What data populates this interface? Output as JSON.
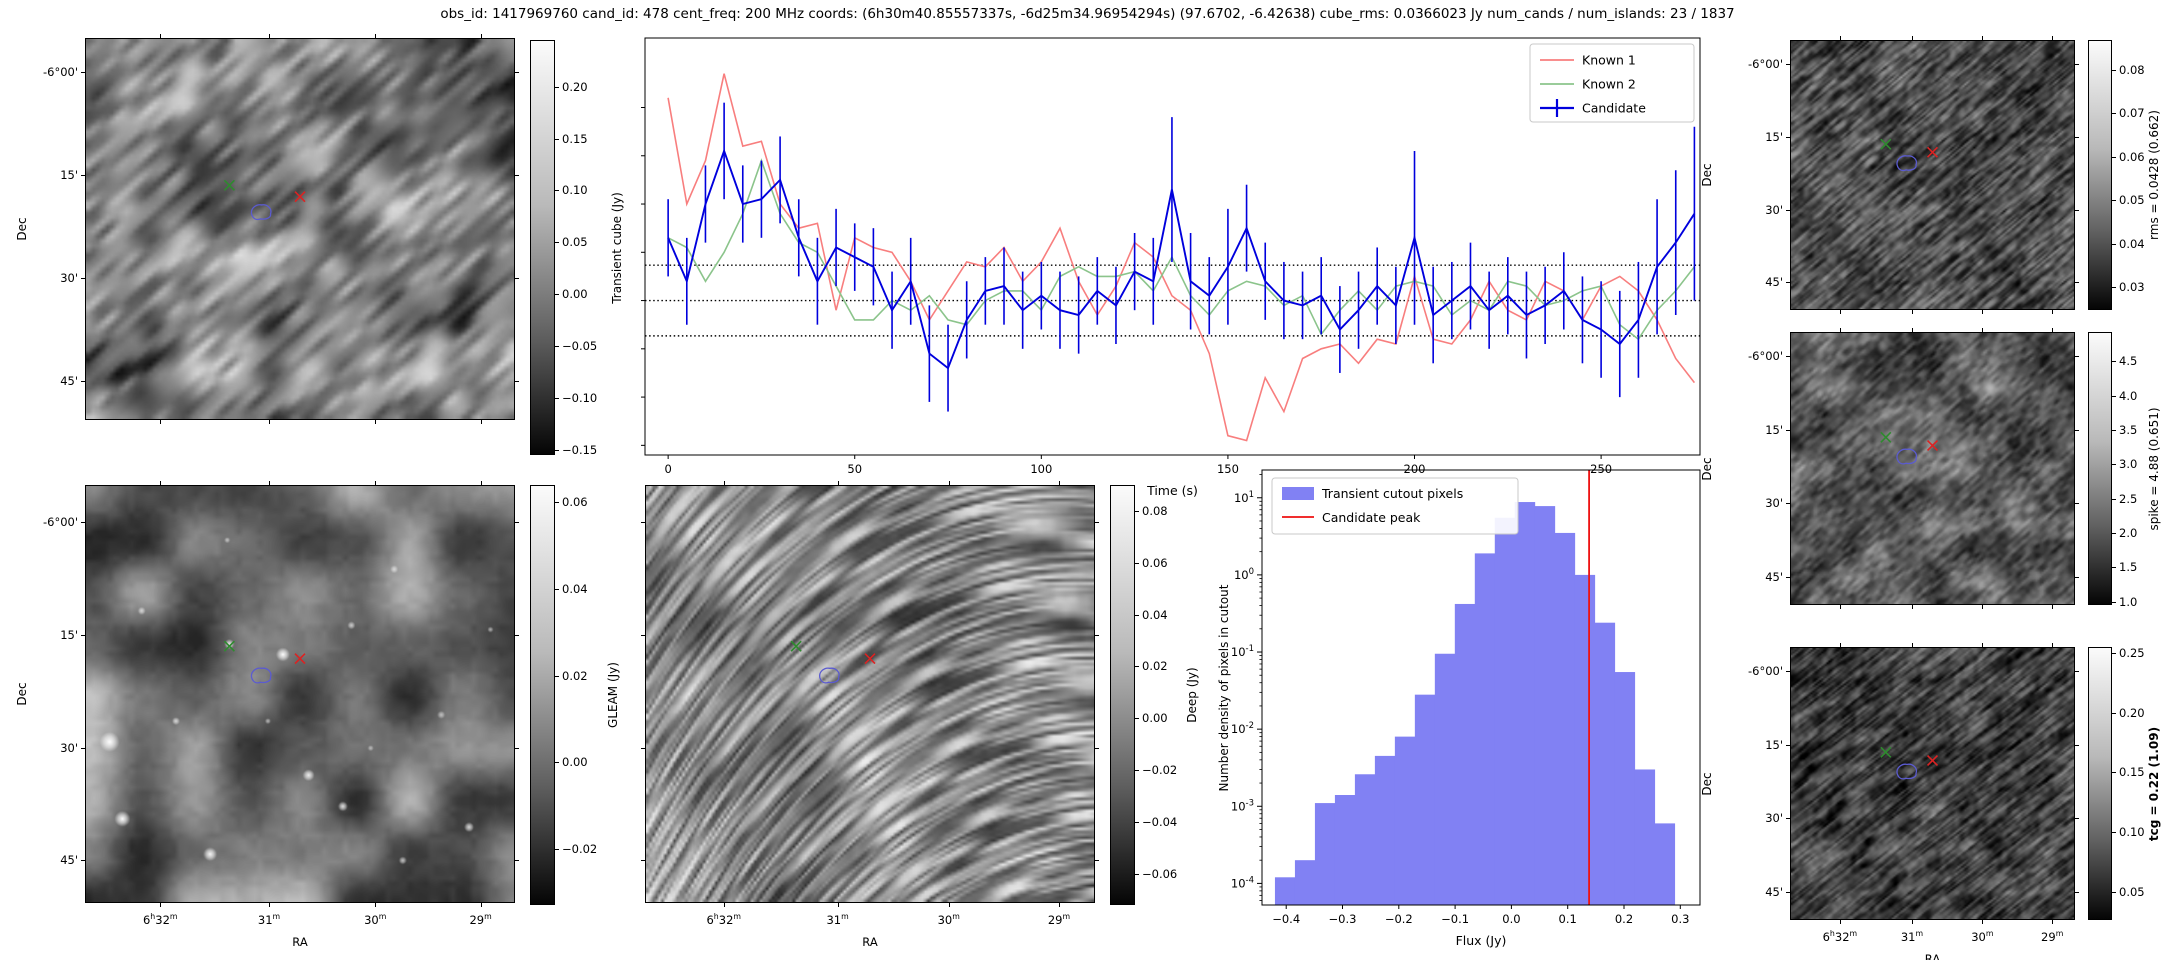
{
  "title": "obs_id: 1417969760 cand_id: 478 cent_freq: 200 MHz coords: (6h30m40.85557337s, -6d25m34.96954294s) (97.6702, -6.42638) cube_rms: 0.0366023 Jy num_cands / num_islands: 23 / 1837",
  "axes": {
    "dec_label": "Dec",
    "ra_label": "RA",
    "dec_ticks": [
      "-6°00'",
      "15'",
      "30'",
      "45'"
    ],
    "ra_ticks": [
      "6h32m",
      "31m",
      "30m",
      "29m"
    ]
  },
  "markers": {
    "green_x": {
      "color": "#2e8b2e",
      "x": 0.335,
      "y": 0.385
    },
    "red_x": {
      "color": "#dd2222",
      "x": 0.5,
      "y": 0.415
    },
    "candidate_contour": {
      "color": "#5b5bd0",
      "x": 0.41,
      "y": 0.455
    }
  },
  "image_panels": {
    "transient": {
      "colorbar": {
        "label": "Transient cube (Jy)",
        "tick_labels": [
          "0.20",
          "0.15",
          "0.10",
          "0.05",
          "0.00",
          "−0.05",
          "−0.10",
          "−0.15"
        ],
        "tick_values": [
          0.2,
          0.15,
          0.1,
          0.05,
          0.0,
          -0.05,
          -0.1,
          -0.15
        ],
        "vmin": -0.155,
        "vmax": 0.245,
        "bold": false
      }
    },
    "gleam": {
      "colorbar": {
        "label": "GLEAM (Jy)",
        "tick_labels": [
          "0.06",
          "0.04",
          "0.02",
          "0.00",
          "−0.02"
        ],
        "tick_values": [
          0.06,
          0.04,
          0.02,
          0.0,
          -0.02
        ],
        "vmin": -0.033,
        "vmax": 0.064,
        "bold": false
      }
    },
    "deep": {
      "colorbar": {
        "label": "Deep (Jy)",
        "tick_labels": [
          "0.08",
          "0.06",
          "0.04",
          "0.02",
          "0.00",
          "−0.02",
          "−0.04",
          "−0.06"
        ],
        "tick_values": [
          0.08,
          0.06,
          0.04,
          0.02,
          0.0,
          -0.02,
          -0.04,
          -0.06
        ],
        "vmin": -0.072,
        "vmax": 0.09,
        "bold": false
      }
    },
    "rms": {
      "colorbar": {
        "label": "rms = 0.0428 (0.662)",
        "tick_labels": [
          "0.08",
          "0.07",
          "0.06",
          "0.05",
          "0.04",
          "0.03"
        ],
        "tick_values": [
          0.08,
          0.07,
          0.06,
          0.05,
          0.04,
          0.03
        ],
        "vmin": 0.0248,
        "vmax": 0.0868,
        "bold": false
      }
    },
    "spike": {
      "colorbar": {
        "label": "spike = 4.88 (0.651)",
        "tick_labels": [
          "4.5",
          "4.0",
          "3.5",
          "3.0",
          "2.5",
          "2.0",
          "1.5",
          "1.0"
        ],
        "tick_values": [
          4.5,
          4.0,
          3.5,
          3.0,
          2.5,
          2.0,
          1.5,
          1.0
        ],
        "vmin": 0.95,
        "vmax": 4.93,
        "bold": false
      }
    },
    "tcg": {
      "colorbar": {
        "label": "tcg = 0.22 (1.09)",
        "tick_labels": [
          "0.25",
          "0.20",
          "0.15",
          "0.10",
          "0.05"
        ],
        "tick_values": [
          0.25,
          0.2,
          0.15,
          0.1,
          0.05
        ],
        "vmin": 0.0265,
        "vmax": 0.255,
        "bold": true
      }
    }
  },
  "chart_data": [
    {
      "id": "lightcurve",
      "type": "line",
      "xlabel": "Time (s)",
      "ylabel": "",
      "xlim": [
        -6.2,
        276.5
      ],
      "ylim": [
        -0.16,
        0.272
      ],
      "x_ticks": [
        0,
        50,
        100,
        150,
        200,
        250
      ],
      "y_axis_tick_values": [
        0.2,
        0.15,
        0.1,
        0.05,
        0.0,
        -0.05,
        -0.1,
        -0.15
      ],
      "threshold_lines": [
        0.0366,
        0.0,
        -0.0366
      ],
      "legend": {
        "position": "upper right",
        "entries": [
          "Known 1",
          "Known 2",
          "Candidate"
        ]
      },
      "x": [
        0,
        5,
        10,
        15,
        20,
        25,
        30,
        35,
        40,
        45,
        50,
        55,
        60,
        65,
        70,
        75,
        80,
        85,
        90,
        95,
        100,
        105,
        110,
        115,
        120,
        125,
        130,
        135,
        140,
        145,
        150,
        155,
        160,
        165,
        170,
        175,
        180,
        185,
        190,
        195,
        200,
        205,
        210,
        215,
        220,
        225,
        230,
        235,
        240,
        245,
        250,
        255,
        260,
        265,
        270,
        275
      ],
      "series": [
        {
          "name": "Known 1",
          "color": "#f87e7e",
          "y": [
            0.21,
            0.1,
            0.145,
            0.235,
            0.16,
            0.165,
            0.1,
            0.075,
            0.08,
            -0.01,
            0.065,
            0.055,
            0.05,
            0.02,
            -0.02,
            0.01,
            0.04,
            0.035,
            0.055,
            0.02,
            0.04,
            0.075,
            0.02,
            -0.015,
            0.015,
            0.06,
            0.045,
            0.005,
            -0.01,
            -0.055,
            -0.14,
            -0.145,
            -0.08,
            -0.115,
            -0.06,
            -0.05,
            -0.045,
            -0.065,
            -0.04,
            -0.045,
            0.025,
            -0.04,
            -0.045,
            -0.02,
            0.02,
            -0.01,
            -0.02,
            0.02,
            0.01,
            -0.02,
            0.015,
            0.025,
            0.01,
            -0.02,
            -0.06,
            -0.085
          ]
        },
        {
          "name": "Known 2",
          "color": "#8bc48b",
          "y": [
            0.065,
            0.055,
            0.02,
            0.05,
            0.09,
            0.145,
            0.09,
            0.06,
            0.05,
            0.015,
            -0.02,
            -0.02,
            0.0,
            -0.01,
            0.005,
            -0.02,
            -0.025,
            0.0,
            0.01,
            0.01,
            -0.01,
            0.025,
            0.035,
            0.025,
            0.025,
            0.03,
            0.01,
            0.045,
            0.005,
            -0.015,
            0.01,
            0.02,
            0.015,
            -0.005,
            0.005,
            -0.035,
            -0.01,
            0.01,
            -0.01,
            0.015,
            0.02,
            0.015,
            -0.015,
            0.0,
            -0.01,
            0.02,
            0.015,
            -0.005,
            0.0,
            0.01,
            0.015,
            -0.025,
            -0.04,
            -0.01,
            0.01,
            0.035
          ]
        },
        {
          "name": "Candidate",
          "color": "#0000dd",
          "y": [
            0.065,
            0.02,
            0.1,
            0.155,
            0.1,
            0.105,
            0.125,
            0.065,
            0.02,
            0.055,
            0.045,
            0.035,
            -0.01,
            0.02,
            -0.055,
            -0.07,
            -0.02,
            0.01,
            0.015,
            -0.01,
            0.005,
            -0.01,
            -0.015,
            0.01,
            -0.005,
            0.03,
            0.02,
            0.115,
            0.02,
            0.005,
            0.035,
            0.075,
            0.02,
            0.0,
            -0.005,
            0.005,
            -0.03,
            -0.01,
            0.015,
            -0.005,
            0.065,
            -0.015,
            0.0,
            0.015,
            -0.01,
            0.005,
            -0.015,
            -0.005,
            0.01,
            -0.02,
            -0.03,
            -0.045,
            -0.02,
            0.035,
            0.06,
            0.09
          ],
          "yerr": [
            0.04,
            0.045,
            0.04,
            0.05,
            0.04,
            0.04,
            0.045,
            0.04,
            0.045,
            0.04,
            0.035,
            0.04,
            0.04,
            0.045,
            0.05,
            0.045,
            0.04,
            0.035,
            0.04,
            0.04,
            0.035,
            0.04,
            0.04,
            0.035,
            0.04,
            0.04,
            0.045,
            0.075,
            0.05,
            0.04,
            0.06,
            0.045,
            0.04,
            0.04,
            0.035,
            0.04,
            0.045,
            0.04,
            0.04,
            0.04,
            0.09,
            0.05,
            0.04,
            0.045,
            0.04,
            0.04,
            0.045,
            0.04,
            0.04,
            0.045,
            0.05,
            0.055,
            0.06,
            0.07,
            0.075,
            0.09
          ]
        }
      ]
    },
    {
      "id": "flux-histogram",
      "type": "bar",
      "xlabel": "Flux (Jy)",
      "ylabel": "Number density of pixels in cutout",
      "xlim": [
        -0.443,
        0.335
      ],
      "ylog": true,
      "ylim_exp": [
        -4.28,
        1.36
      ],
      "x_tick_labels": [
        "−0.4",
        "−0.3",
        "−0.2",
        "−0.1",
        "0.0",
        "0.1",
        "0.2",
        "0.3"
      ],
      "x_tick_values": [
        -0.4,
        -0.3,
        -0.2,
        -0.1,
        0.0,
        0.1,
        0.2,
        0.3
      ],
      "y_tick_exponents": [
        1,
        0,
        -1,
        -2,
        -3,
        -4
      ],
      "bin_start": -0.42,
      "bin_width": 0.0355,
      "densities": [
        0.00012,
        0.0002,
        0.0011,
        0.0014,
        0.0026,
        0.0045,
        0.008,
        0.028,
        0.095,
        0.42,
        1.9,
        5.5,
        8.8,
        7.8,
        3.5,
        1.0,
        0.24,
        0.055,
        0.003,
        0.0006
      ],
      "candidate_peak": 0.138,
      "legend": {
        "position": "upper left",
        "entries": [
          "Transient cutout pixels",
          "Candidate peak"
        ]
      },
      "colors": {
        "fill": "#8181f3",
        "peak_line": "#ee1111"
      }
    }
  ]
}
